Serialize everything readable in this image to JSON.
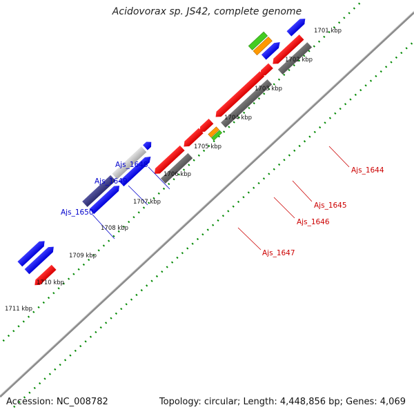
{
  "title": "Acidovorax sp. JS42, complete genome",
  "footer": {
    "accession": "Accession: NC_008782",
    "info": "Topology: circular; Length: 4,448,856 bp; Genes: 4,069"
  },
  "ticks": [
    "1701 kbp",
    "1702 kbp",
    "1703 kbp",
    "1704 kbp",
    "1705 kbp",
    "1706 kbp",
    "1707 kbp",
    "1708 kbp",
    "1709 kbp",
    "1710 kbp",
    "1711 kbp"
  ],
  "gene_labels": {
    "ajs_1644": "Ajs_1644",
    "ajs_1645": "Ajs_1645",
    "ajs_1646": "Ajs_1646",
    "ajs_1647": "Ajs_1647",
    "ajs_1648": "Ajs_1648",
    "ajs_1649": "Ajs_1649",
    "ajs_1650": "Ajs_1650"
  },
  "colors": {
    "forward_cds": "#0000ee",
    "reverse_cds": "#ee0000",
    "forward_label": "#0000cc",
    "reverse_label": "#cc0000",
    "gray_feature": "#6e6e6e",
    "light_gray_feature": "#bdbdbd",
    "purple_feature": "#3b3b8c",
    "green_feature": "#44cc22",
    "orange_feature": "#ff9900",
    "backbone": "#8c8c8c",
    "gc_ticks": "#008800"
  }
}
